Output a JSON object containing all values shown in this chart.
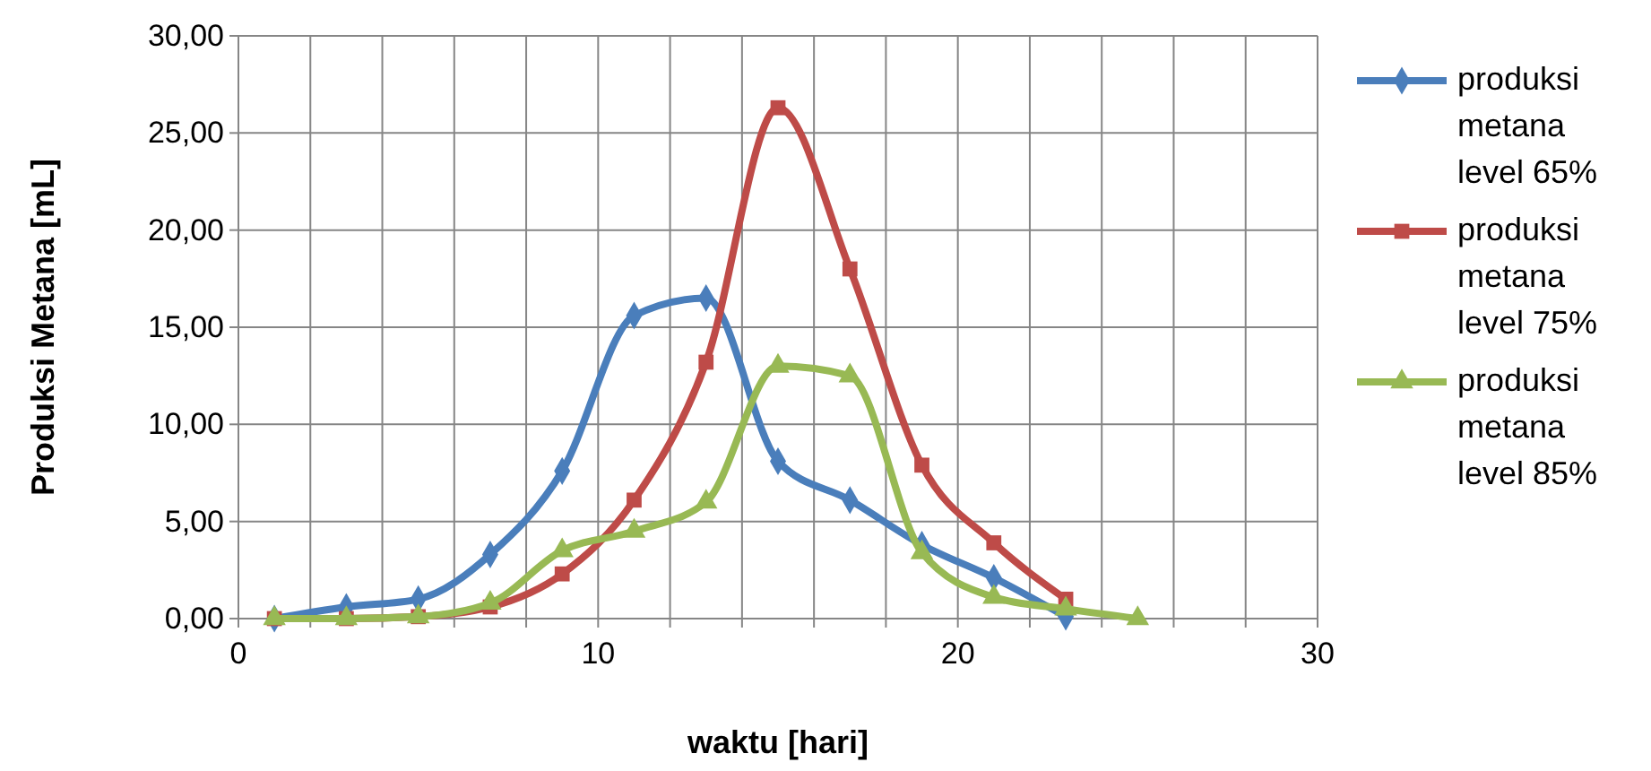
{
  "chart_data": {
    "type": "line",
    "xlabel": "waktu [hari]",
    "ylabel": "Produksi Metana [mL]",
    "series": [
      {
        "name": "produksi metana level 65%",
        "color": "#4a7ebb",
        "marker": "diamond",
        "x": [
          1,
          3,
          5,
          7,
          9,
          11,
          13,
          15,
          17,
          19,
          21,
          23
        ],
        "values": [
          0,
          0.6,
          1.0,
          3.3,
          7.6,
          15.6,
          16.5,
          8.1,
          6.1,
          3.8,
          2.1,
          0.1
        ]
      },
      {
        "name": "produksi metana level 75%",
        "color": "#be4b48",
        "marker": "square",
        "x": [
          1,
          3,
          5,
          7,
          9,
          11,
          13,
          15,
          17,
          19,
          21,
          23
        ],
        "values": [
          0,
          0,
          0.1,
          0.6,
          2.3,
          6.1,
          13.2,
          26.3,
          18.0,
          7.9,
          3.9,
          1.0
        ]
      },
      {
        "name": "produksi metana level 85%",
        "color": "#98b954",
        "marker": "triangle",
        "x": [
          1,
          3,
          5,
          7,
          9,
          11,
          13,
          15,
          17,
          19,
          21,
          23,
          25
        ],
        "values": [
          0,
          0,
          0.1,
          0.8,
          3.5,
          4.5,
          6.0,
          13.0,
          12.5,
          3.4,
          1.1,
          0.5,
          0
        ]
      }
    ],
    "xlim": [
      0,
      30
    ],
    "xticks": [
      0,
      {
        "value": 2,
        "label": null
      },
      {
        "value": 4,
        "label": null
      },
      {
        "value": 6,
        "label": null
      },
      {
        "value": 8,
        "label": null
      },
      10,
      {
        "value": 12,
        "label": null
      },
      {
        "value": 14,
        "label": null
      },
      {
        "value": 16,
        "label": null
      },
      {
        "value": 18,
        "label": null
      },
      20,
      {
        "value": 22,
        "label": null
      },
      {
        "value": 24,
        "label": null
      },
      {
        "value": 26,
        "label": null
      },
      {
        "value": 28,
        "label": null
      },
      30
    ],
    "ylim": [
      0,
      30
    ],
    "yticks": [
      {
        "value": 0,
        "label": "0,00"
      },
      {
        "value": 5,
        "label": "5,00"
      },
      {
        "value": 10,
        "label": "10,00"
      },
      {
        "value": 15,
        "label": "15,00"
      },
      {
        "value": 20,
        "label": "20,00"
      },
      {
        "value": 25,
        "label": "25,00"
      },
      {
        "value": 30,
        "label": "30,00"
      }
    ],
    "grid": true,
    "legend": "right",
    "line_style": "solid"
  }
}
